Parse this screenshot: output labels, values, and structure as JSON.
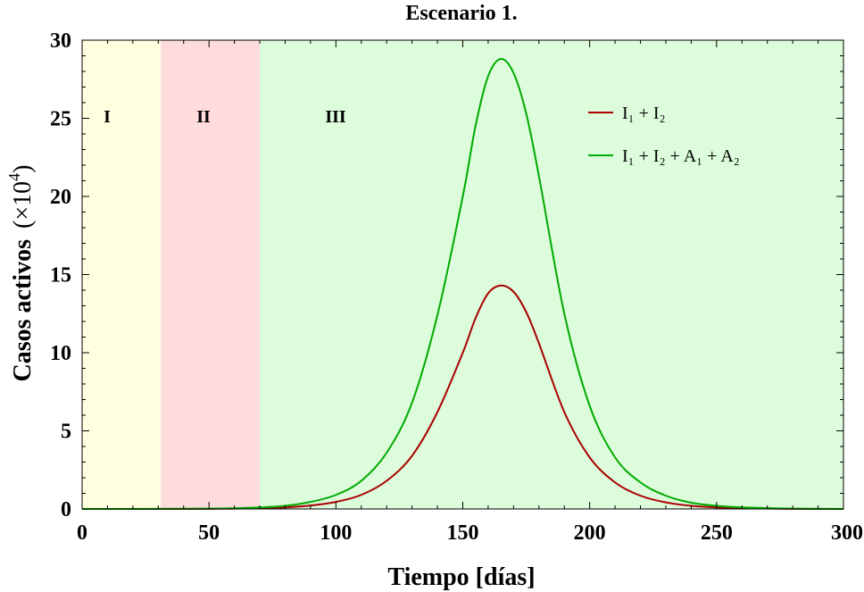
{
  "chart_data": {
    "type": "line",
    "title": "Escenario 1.",
    "xlabel": "Tiempo [días]",
    "ylabel_main": "Casos activos",
    "ylabel_unit_base": "(×10",
    "ylabel_unit_exp": "4",
    "ylabel_unit_close": ")",
    "xlim": [
      0,
      300
    ],
    "ylim": [
      0,
      30
    ],
    "xticks": [
      "0",
      "50",
      "100",
      "150",
      "200",
      "250",
      "300"
    ],
    "yticks": [
      "0",
      "5",
      "10",
      "15",
      "20",
      "25",
      "30"
    ],
    "grid": false,
    "legend_placement": "top-right",
    "regions": [
      {
        "label": "I",
        "x0": 0,
        "x1": 31,
        "color": "#ffffe0"
      },
      {
        "label": "II",
        "x0": 31,
        "x1": 70,
        "color": "#ffdcdc"
      },
      {
        "label": "III",
        "x0": 70,
        "x1": 300,
        "color": "#dcfcdc"
      }
    ],
    "series": [
      {
        "name": "I₁ + I₂",
        "color": "#aa0000",
        "x": [
          0,
          50,
          70,
          80,
          90,
          100,
          110,
          120,
          130,
          140,
          150,
          155,
          160,
          165,
          170,
          175,
          180,
          190,
          200,
          210,
          220,
          230,
          240,
          250,
          260,
          280,
          300
        ],
        "values": [
          0,
          0.01,
          0.05,
          0.1,
          0.22,
          0.45,
          0.9,
          1.8,
          3.4,
          6.2,
          10.0,
          12.2,
          13.8,
          14.3,
          13.9,
          12.6,
          10.6,
          6.2,
          3.3,
          1.7,
          0.85,
          0.42,
          0.2,
          0.1,
          0.05,
          0.01,
          0
        ]
      },
      {
        "name": "I₁ + I₂ + A₁ + A₂",
        "color": "#00aa00",
        "x": [
          0,
          50,
          70,
          80,
          90,
          100,
          110,
          120,
          130,
          140,
          150,
          155,
          160,
          165,
          170,
          175,
          180,
          190,
          200,
          210,
          220,
          230,
          240,
          250,
          260,
          280,
          300
        ],
        "values": [
          0,
          0.02,
          0.1,
          0.2,
          0.45,
          0.9,
          1.8,
          3.6,
          6.8,
          12.4,
          20.0,
          24.5,
          27.7,
          28.8,
          27.9,
          25.3,
          21.3,
          12.5,
          6.6,
          3.3,
          1.7,
          0.85,
          0.4,
          0.2,
          0.1,
          0.02,
          0
        ]
      }
    ]
  }
}
